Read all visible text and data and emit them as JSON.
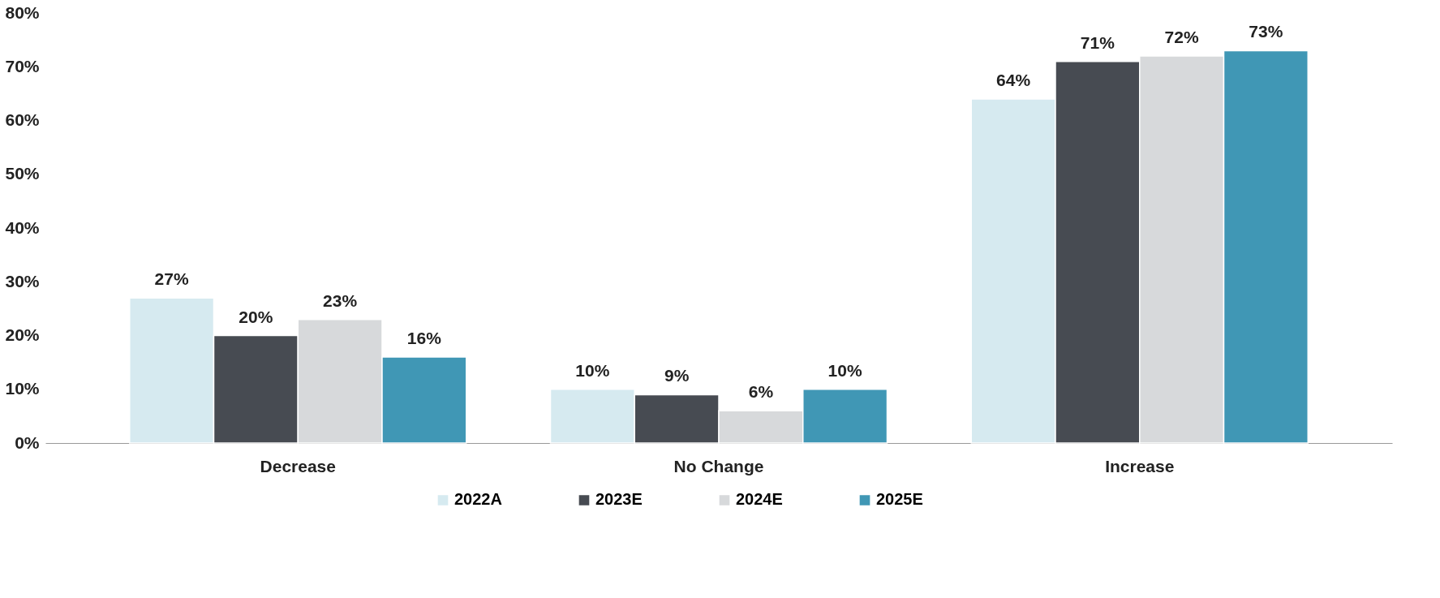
{
  "chart_data": {
    "type": "bar",
    "categories": [
      "Decrease",
      "No Change",
      "Increase"
    ],
    "series": [
      {
        "name": "2022A",
        "color": "#d6eaf0",
        "values": [
          27,
          10,
          64
        ],
        "value_labels": [
          "27%",
          "10%",
          "64%"
        ]
      },
      {
        "name": "2023E",
        "color": "#474b52",
        "values": [
          20,
          9,
          71
        ],
        "value_labels": [
          "20%",
          "9%",
          "71%"
        ]
      },
      {
        "name": "2024E",
        "color": "#d7d9db",
        "values": [
          23,
          6,
          72
        ],
        "value_labels": [
          "23%",
          "6%",
          "72%"
        ]
      },
      {
        "name": "2025E",
        "color": "#4097b5",
        "values": [
          16,
          10,
          73
        ],
        "value_labels": [
          "16%",
          "10%",
          "73%"
        ]
      }
    ],
    "ylim": [
      0,
      80
    ],
    "yticks": [
      {
        "value": 0,
        "label": "0%"
      },
      {
        "value": 10,
        "label": "10%"
      },
      {
        "value": 20,
        "label": "20%"
      },
      {
        "value": 30,
        "label": "30%"
      },
      {
        "value": 40,
        "label": "40%"
      },
      {
        "value": 50,
        "label": "50%"
      },
      {
        "value": 60,
        "label": "60%"
      },
      {
        "value": 70,
        "label": "70%"
      },
      {
        "value": 80,
        "label": "80%"
      }
    ],
    "grid": false,
    "legend": "bottom"
  }
}
